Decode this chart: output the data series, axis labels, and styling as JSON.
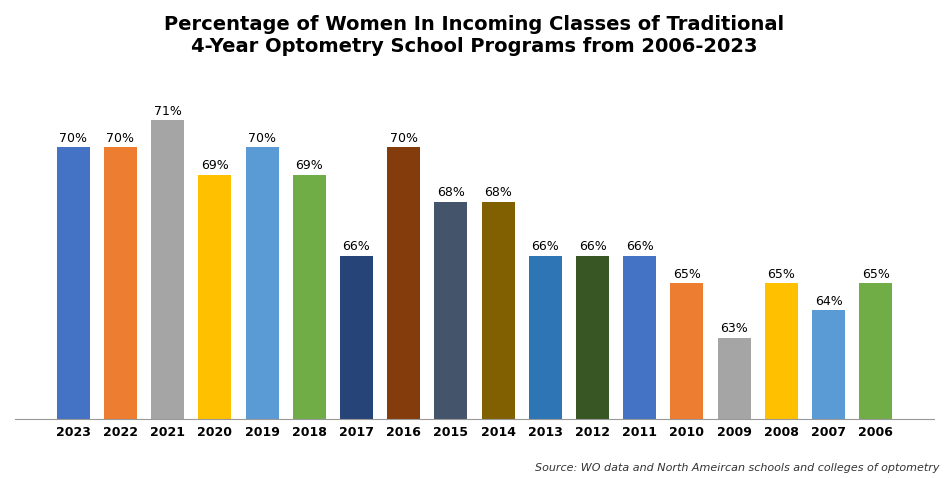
{
  "years": [
    "2023",
    "2022",
    "2021",
    "2020",
    "2019",
    "2018",
    "2017",
    "2016",
    "2015",
    "2014",
    "2013",
    "2012",
    "2011",
    "2010",
    "2009",
    "2008",
    "2007",
    "2006"
  ],
  "values": [
    70,
    70,
    71,
    69,
    70,
    69,
    66,
    70,
    68,
    68,
    66,
    66,
    66,
    65,
    63,
    65,
    64,
    65
  ],
  "colors": [
    "#4472C4",
    "#ED7D31",
    "#A5A5A5",
    "#FFC000",
    "#5B9BD5",
    "#70AD47",
    "#264478",
    "#843C0C",
    "#44546A",
    "#806000",
    "#2E75B6",
    "#375623",
    "#4472C4",
    "#ED7D31",
    "#A5A5A5",
    "#FFC000",
    "#5B9BD5",
    "#70AD47"
  ],
  "title_line1": "Percentage of Women In Incoming Classes of Traditional",
  "title_line2": "4-Year Optometry School Programs from 2006-2023",
  "source": "Source: WO data and North Ameircan schools and colleges of optometry",
  "ylim": [
    60,
    73
  ],
  "title_fontsize": 14,
  "label_fontsize": 9,
  "tick_fontsize": 9,
  "source_fontsize": 8
}
